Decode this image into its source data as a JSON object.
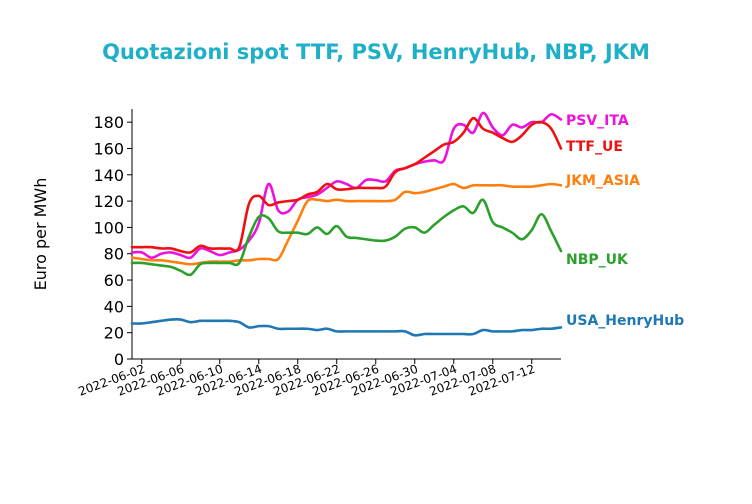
{
  "chart_data": {
    "type": "line",
    "title": "Quotazioni spot TTF, PSV, HenryHub, NBP, JKM",
    "title_color": "#1fb0c8",
    "ylabel": "Euro per MWh",
    "xlabel": "",
    "ylim": [
      0,
      190
    ],
    "yticks": [
      0,
      20,
      40,
      60,
      80,
      100,
      120,
      140,
      160,
      180
    ],
    "xlim": [
      "2022-06-01",
      "2022-07-15"
    ],
    "xticks": [
      "2022-06-02",
      "2022-06-06",
      "2022-06-10",
      "2022-06-14",
      "2022-06-18",
      "2022-06-22",
      "2022-06-26",
      "2022-06-30",
      "2022-07-04",
      "2022-07-08",
      "2022-07-12"
    ],
    "grid": false,
    "legend": "right, labels at line ends",
    "series": [
      {
        "name": "PSV_ITA",
        "color": "#ee11dd",
        "x": [
          "2022-06-01",
          "2022-06-02",
          "2022-06-03",
          "2022-06-04",
          "2022-06-05",
          "2022-06-06",
          "2022-06-07",
          "2022-06-08",
          "2022-06-09",
          "2022-06-10",
          "2022-06-11",
          "2022-06-12",
          "2022-06-13",
          "2022-06-14",
          "2022-06-15",
          "2022-06-16",
          "2022-06-17",
          "2022-06-18",
          "2022-06-19",
          "2022-06-20",
          "2022-06-21",
          "2022-06-22",
          "2022-06-23",
          "2022-06-24",
          "2022-06-25",
          "2022-06-26",
          "2022-06-27",
          "2022-06-28",
          "2022-06-29",
          "2022-06-30",
          "2022-07-01",
          "2022-07-02",
          "2022-07-03",
          "2022-07-04",
          "2022-07-05",
          "2022-07-06",
          "2022-07-07",
          "2022-07-08",
          "2022-07-09",
          "2022-07-10",
          "2022-07-11",
          "2022-07-12",
          "2022-07-13",
          "2022-07-14",
          "2022-07-15"
        ],
        "values": [
          81,
          81,
          77,
          80,
          81,
          79,
          77,
          84,
          82,
          79,
          81,
          83,
          90,
          103,
          133,
          113,
          112,
          121,
          123,
          125,
          130,
          135,
          133,
          130,
          136,
          136,
          135,
          143,
          145,
          148,
          150,
          151,
          151,
          175,
          178,
          172,
          187,
          176,
          170,
          178,
          176,
          180,
          180,
          186,
          182
        ]
      },
      {
        "name": "TTF_UE",
        "color": "#ee1111",
        "x": [
          "2022-06-01",
          "2022-06-02",
          "2022-06-03",
          "2022-06-04",
          "2022-06-05",
          "2022-06-06",
          "2022-06-07",
          "2022-06-08",
          "2022-06-09",
          "2022-06-10",
          "2022-06-11",
          "2022-06-12",
          "2022-06-13",
          "2022-06-14",
          "2022-06-15",
          "2022-06-16",
          "2022-06-17",
          "2022-06-18",
          "2022-06-19",
          "2022-06-20",
          "2022-06-21",
          "2022-06-22",
          "2022-06-23",
          "2022-06-24",
          "2022-06-25",
          "2022-06-26",
          "2022-06-27",
          "2022-06-28",
          "2022-06-29",
          "2022-06-30",
          "2022-07-01",
          "2022-07-02",
          "2022-07-03",
          "2022-07-04",
          "2022-07-05",
          "2022-07-06",
          "2022-07-07",
          "2022-07-08",
          "2022-07-09",
          "2022-07-10",
          "2022-07-11",
          "2022-07-12",
          "2022-07-13",
          "2022-07-14",
          "2022-07-15"
        ],
        "values": [
          85,
          85,
          85,
          84,
          84,
          82,
          81,
          86,
          84,
          84,
          84,
          85,
          118,
          124,
          117,
          119,
          120,
          121,
          125,
          127,
          133,
          129,
          129,
          130,
          130,
          130,
          131,
          142,
          145,
          148,
          153,
          158,
          163,
          165,
          172,
          183,
          175,
          172,
          168,
          165,
          170,
          178,
          180,
          175,
          160
        ]
      },
      {
        "name": "JKM_ASIA",
        "color": "#ff7f0e",
        "x": [
          "2022-06-01",
          "2022-06-02",
          "2022-06-03",
          "2022-06-04",
          "2022-06-05",
          "2022-06-06",
          "2022-06-07",
          "2022-06-08",
          "2022-06-09",
          "2022-06-10",
          "2022-06-11",
          "2022-06-12",
          "2022-06-13",
          "2022-06-14",
          "2022-06-15",
          "2022-06-16",
          "2022-06-17",
          "2022-06-18",
          "2022-06-19",
          "2022-06-20",
          "2022-06-21",
          "2022-06-22",
          "2022-06-23",
          "2022-06-24",
          "2022-06-25",
          "2022-06-26",
          "2022-06-27",
          "2022-06-28",
          "2022-06-29",
          "2022-06-30",
          "2022-07-01",
          "2022-07-02",
          "2022-07-03",
          "2022-07-04",
          "2022-07-05",
          "2022-07-06",
          "2022-07-07",
          "2022-07-08",
          "2022-07-09",
          "2022-07-10",
          "2022-07-11",
          "2022-07-12",
          "2022-07-13",
          "2022-07-14",
          "2022-07-15"
        ],
        "values": [
          77,
          76,
          75,
          75,
          74,
          73,
          72,
          73,
          74,
          74,
          74,
          75,
          75,
          76,
          76,
          76,
          90,
          105,
          120,
          121,
          120,
          121,
          120,
          120,
          120,
          120,
          120,
          121,
          127,
          126,
          127,
          129,
          131,
          133,
          130,
          132,
          132,
          132,
          132,
          131,
          131,
          131,
          132,
          133,
          132
        ]
      },
      {
        "name": "NBP_UK",
        "color": "#2ca02c",
        "x": [
          "2022-06-01",
          "2022-06-02",
          "2022-06-03",
          "2022-06-04",
          "2022-06-05",
          "2022-06-06",
          "2022-06-07",
          "2022-06-08",
          "2022-06-09",
          "2022-06-10",
          "2022-06-11",
          "2022-06-12",
          "2022-06-13",
          "2022-06-14",
          "2022-06-15",
          "2022-06-16",
          "2022-06-17",
          "2022-06-18",
          "2022-06-19",
          "2022-06-20",
          "2022-06-21",
          "2022-06-22",
          "2022-06-23",
          "2022-06-24",
          "2022-06-25",
          "2022-06-26",
          "2022-06-27",
          "2022-06-28",
          "2022-06-29",
          "2022-06-30",
          "2022-07-01",
          "2022-07-02",
          "2022-07-03",
          "2022-07-04",
          "2022-07-05",
          "2022-07-06",
          "2022-07-07",
          "2022-07-08",
          "2022-07-09",
          "2022-07-10",
          "2022-07-11",
          "2022-07-12",
          "2022-07-13",
          "2022-07-14",
          "2022-07-15"
        ],
        "values": [
          73,
          73,
          72,
          71,
          70,
          67,
          64,
          72,
          73,
          73,
          73,
          73,
          93,
          108,
          107,
          97,
          96,
          96,
          95,
          100,
          95,
          101,
          93,
          92,
          91,
          90,
          90,
          93,
          99,
          100,
          96,
          102,
          108,
          113,
          116,
          111,
          121,
          104,
          100,
          96,
          91,
          98,
          110,
          97,
          82
        ]
      },
      {
        "name": "USA_HenryHub",
        "color": "#1f77b4",
        "x": [
          "2022-06-01",
          "2022-06-02",
          "2022-06-03",
          "2022-06-04",
          "2022-06-05",
          "2022-06-06",
          "2022-06-07",
          "2022-06-08",
          "2022-06-09",
          "2022-06-10",
          "2022-06-11",
          "2022-06-12",
          "2022-06-13",
          "2022-06-14",
          "2022-06-15",
          "2022-06-16",
          "2022-06-17",
          "2022-06-18",
          "2022-06-19",
          "2022-06-20",
          "2022-06-21",
          "2022-06-22",
          "2022-06-23",
          "2022-06-24",
          "2022-06-25",
          "2022-06-26",
          "2022-06-27",
          "2022-06-28",
          "2022-06-29",
          "2022-06-30",
          "2022-07-01",
          "2022-07-02",
          "2022-07-03",
          "2022-07-04",
          "2022-07-05",
          "2022-07-06",
          "2022-07-07",
          "2022-07-08",
          "2022-07-09",
          "2022-07-10",
          "2022-07-11",
          "2022-07-12",
          "2022-07-13",
          "2022-07-14",
          "2022-07-15"
        ],
        "values": [
          27,
          27,
          28,
          29,
          30,
          30,
          28,
          29,
          29,
          29,
          29,
          28,
          24,
          25,
          25,
          23,
          23,
          23,
          23,
          22,
          23,
          21,
          21,
          21,
          21,
          21,
          21,
          21,
          21,
          18,
          19,
          19,
          19,
          19,
          19,
          19,
          22,
          21,
          21,
          21,
          22,
          22,
          23,
          23,
          24
        ]
      }
    ]
  }
}
